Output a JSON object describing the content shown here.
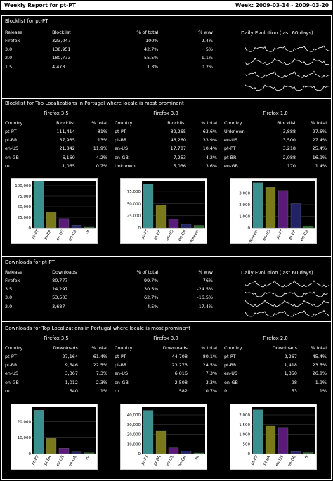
{
  "header": {
    "title": "Weekly Report for pt-PT",
    "week": "Week: 2009-03-14 - 2009-03-20"
  },
  "blocklist": {
    "title": "Blocklist for pt-PT",
    "columns": [
      "Release",
      "Blocklist",
      "% of total",
      "% w/w",
      "Daily Evolution (last 60 days)"
    ],
    "rows": [
      [
        "Firefox",
        "323,047",
        "100%",
        "2.4%"
      ],
      [
        "3.0",
        "138,951",
        "42.7%",
        "5%"
      ],
      [
        "2.0",
        "180,773",
        "55.5%",
        "-1.1%"
      ],
      [
        "1.5",
        "4,473",
        "1.3%",
        "0.2%"
      ]
    ]
  },
  "bl_loc": {
    "title": "Blocklist for Top Localizations in Portugal where locale is most prominent",
    "panels": [
      {
        "caption": "Firefox 3.5",
        "cols": [
          "Country",
          "Blocklist",
          "% total"
        ],
        "rows": [
          [
            "pt-PT",
            "111,414",
            "81%"
          ],
          [
            "pt-BR",
            "37,935",
            "13%"
          ],
          [
            "en-US",
            "21,842",
            "11.9%"
          ],
          [
            "en-GB",
            "6,160",
            "4.2%"
          ],
          [
            "ru",
            "1,065",
            "0.7%"
          ]
        ],
        "chart": {
          "type": "bar",
          "categories": [
            "pt-PT",
            "pt-BR",
            "en-US",
            "en-GB",
            "ru"
          ],
          "values": [
            111414,
            37935,
            21842,
            6160,
            1065
          ],
          "ylim": [
            0,
            110000
          ],
          "yticks": [
            "100,000",
            "75,000",
            "50,000",
            "25,000",
            "0"
          ],
          "colors": [
            "#3a8f8f",
            "#7a7a1a",
            "#5a1a7a",
            "#222266",
            "#2a6a2a"
          ]
        }
      },
      {
        "caption": "Firefox 3.0",
        "cols": [
          "Country",
          "Blocklist",
          "% total"
        ],
        "rows": [
          [
            "pt-PT",
            "89,265",
            "63.6%"
          ],
          [
            "pt-BR",
            "46,260",
            "33.9%"
          ],
          [
            "en-US",
            "17,787",
            "10.4%"
          ],
          [
            "en-GB",
            "7,253",
            "4.2%"
          ],
          [
            "Unknown",
            "5,036",
            "3.6%"
          ]
        ],
        "chart": {
          "type": "bar",
          "categories": [
            "pt-PT",
            "pt-BR",
            "en-US",
            "en-GB",
            "Unknown"
          ],
          "values": [
            89265,
            46260,
            17787,
            7253,
            5036
          ],
          "ylim": [
            0,
            95000
          ],
          "yticks": [
            "75,000",
            "50,000",
            "25,000",
            "0"
          ],
          "colors": [
            "#3a8f8f",
            "#7a7a1a",
            "#5a1a7a",
            "#222266",
            "#2a6a2a"
          ]
        }
      },
      {
        "caption": "Firefox 1.0",
        "cols": [
          "Country",
          "Blocklist",
          "% total"
        ],
        "rows": [
          [
            "Unknown",
            "3,888",
            "27.6%"
          ],
          [
            "en-US",
            "3,500",
            "27.4%"
          ],
          [
            "pt-PT",
            "3,218",
            "25.4%"
          ],
          [
            "pt-BR",
            "2,088",
            "16.9%"
          ],
          [
            "en-GB",
            "170",
            "1.4%"
          ]
        ],
        "chart": {
          "type": "bar",
          "categories": [
            "Unknown",
            "en-US",
            "pt-PT",
            "pt-BR",
            "en-GB"
          ],
          "values": [
            3888,
            3500,
            3218,
            2088,
            170
          ],
          "ylim": [
            0,
            4000
          ],
          "yticks": [
            "3,000",
            "2,000",
            "1,000",
            "0"
          ],
          "colors": [
            "#3a8f8f",
            "#7a7a1a",
            "#5a1a7a",
            "#222266",
            "#2a6a2a"
          ]
        }
      }
    ]
  },
  "downloads": {
    "title": "Downloads for pt-PT",
    "columns": [
      "Release",
      "Downloads",
      "% of total",
      "% w/w",
      "Daily Evolution (last 60 days)"
    ],
    "rows": [
      [
        "Firefox",
        "80,777",
        "99.7%",
        "-76%"
      ],
      [
        "3.5",
        "24,297",
        "30.5%",
        "-24.5%"
      ],
      [
        "3.0",
        "53,503",
        "62.7%",
        "-16.5%"
      ],
      [
        "2.0",
        "3,687",
        "4.5%",
        "17.4%"
      ]
    ]
  },
  "dl_loc": {
    "title": "Downloads for Top Localizations in Portugal where locale is most prominent",
    "panels": [
      {
        "caption": "Firefox 3.5",
        "cols": [
          "Country",
          "Downloads",
          "% total"
        ],
        "rows": [
          [
            "pt-PT",
            "27,164",
            "61.4%"
          ],
          [
            "pt-BR",
            "9,546",
            "22.5%"
          ],
          [
            "en-US",
            "3,367",
            "7.3%"
          ],
          [
            "en-GB",
            "1,012",
            "2.3%"
          ],
          [
            "ru",
            "540",
            "1%"
          ]
        ],
        "chart": {
          "type": "bar",
          "categories": [
            "pt-PT",
            "pt-BR",
            "en-US",
            "en-GB",
            "ru"
          ],
          "values": [
            27164,
            9546,
            3367,
            1012,
            540
          ],
          "ylim": [
            0,
            29000
          ],
          "yticks": [
            "20,000",
            "10,000",
            "0"
          ],
          "colors": [
            "#3a8f8f",
            "#7a7a1a",
            "#5a1a7a",
            "#222266",
            "#2a6a2a"
          ]
        }
      },
      {
        "caption": "Firefox 3.0",
        "cols": [
          "Country",
          "Downloads",
          "% total"
        ],
        "rows": [
          [
            "pt-PT",
            "44,708",
            "80.1%"
          ],
          [
            "pt-BR",
            "23,273",
            "24.5%"
          ],
          [
            "en-US",
            "6,016",
            "7.3%"
          ],
          [
            "en-GB",
            "2,508",
            "3.3%"
          ],
          [
            "ru",
            "582",
            "0.7%"
          ]
        ],
        "chart": {
          "type": "bar",
          "categories": [
            "pt-PT",
            "pt-BR",
            "en-US",
            "en-GB",
            "ru"
          ],
          "values": [
            44708,
            23273,
            6016,
            2508,
            582
          ],
          "ylim": [
            0,
            48000
          ],
          "yticks": [
            "40,000",
            "30,000",
            "20,000",
            "10,000",
            "0"
          ],
          "colors": [
            "#3a8f8f",
            "#7a7a1a",
            "#5a1a7a",
            "#222266",
            "#2a6a2a"
          ]
        }
      },
      {
        "caption": "Firefox 2.0",
        "cols": [
          "Country",
          "Downloads",
          "% total"
        ],
        "rows": [
          [
            "pt-PT",
            "2,267",
            "45.4%"
          ],
          [
            "pt-BR",
            "1,418",
            "23.5%"
          ],
          [
            "en-US",
            "1,350",
            "26.8%"
          ],
          [
            "en-GB",
            "98",
            "1.9%"
          ],
          [
            "fr",
            "53",
            "1%"
          ]
        ],
        "chart": {
          "type": "bar",
          "categories": [
            "pt-PT",
            "pt-BR",
            "en-US",
            "en-GB",
            "fr"
          ],
          "values": [
            2267,
            1418,
            1350,
            98,
            53
          ],
          "ylim": [
            0,
            2400
          ],
          "yticks": [
            "2,000",
            "1,500",
            "1,000",
            "500",
            "0"
          ],
          "colors": [
            "#3a8f8f",
            "#7a7a1a",
            "#5a1a7a",
            "#222266",
            "#2a6a2a"
          ]
        }
      }
    ]
  },
  "chart_data": [
    {
      "type": "bar",
      "categories": [
        "pt-PT",
        "pt-BR",
        "en-US",
        "en-GB",
        "ru"
      ],
      "values": [
        111414,
        37935,
        21842,
        6160,
        1065
      ]
    },
    {
      "type": "bar",
      "categories": [
        "pt-PT",
        "pt-BR",
        "en-US",
        "en-GB",
        "Unknown"
      ],
      "values": [
        89265,
        46260,
        17787,
        7253,
        5036
      ]
    },
    {
      "type": "bar",
      "categories": [
        "Unknown",
        "en-US",
        "pt-PT",
        "pt-BR",
        "en-GB"
      ],
      "values": [
        3888,
        3500,
        3218,
        2088,
        170
      ]
    },
    {
      "type": "bar",
      "categories": [
        "pt-PT",
        "pt-BR",
        "en-US",
        "en-GB",
        "ru"
      ],
      "values": [
        27164,
        9546,
        3367,
        1012,
        540
      ]
    },
    {
      "type": "bar",
      "categories": [
        "pt-PT",
        "pt-BR",
        "en-US",
        "en-GB",
        "ru"
      ],
      "values": [
        44708,
        23273,
        6016,
        2508,
        582
      ]
    },
    {
      "type": "bar",
      "categories": [
        "pt-PT",
        "pt-BR",
        "en-US",
        "en-GB",
        "fr"
      ],
      "values": [
        2267,
        1418,
        1350,
        98,
        53
      ]
    }
  ]
}
